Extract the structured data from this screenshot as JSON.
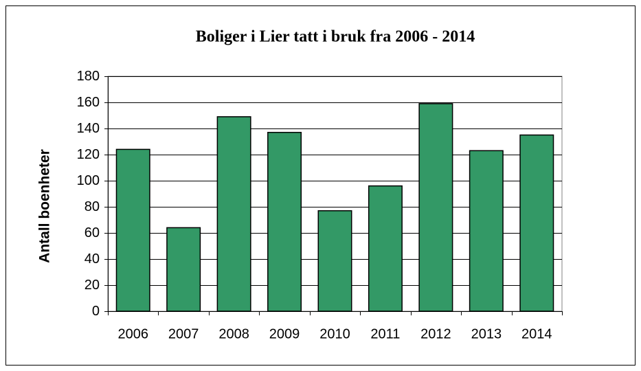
{
  "chart_data": {
    "type": "bar",
    "title": "Boliger i Lier tatt i bruk fra 2006 - 2014",
    "y_label": "Antall boenheter",
    "categories": [
      "2006",
      "2007",
      "2008",
      "2009",
      "2010",
      "2011",
      "2012",
      "2013",
      "2014"
    ],
    "values": [
      124,
      64,
      149,
      137,
      77,
      96,
      159,
      123,
      135
    ],
    "color": "#339966",
    "ylim": [
      0,
      180
    ],
    "yticks": [
      0,
      20,
      40,
      60,
      80,
      100,
      120,
      140,
      160,
      180
    ],
    "grid": true
  }
}
